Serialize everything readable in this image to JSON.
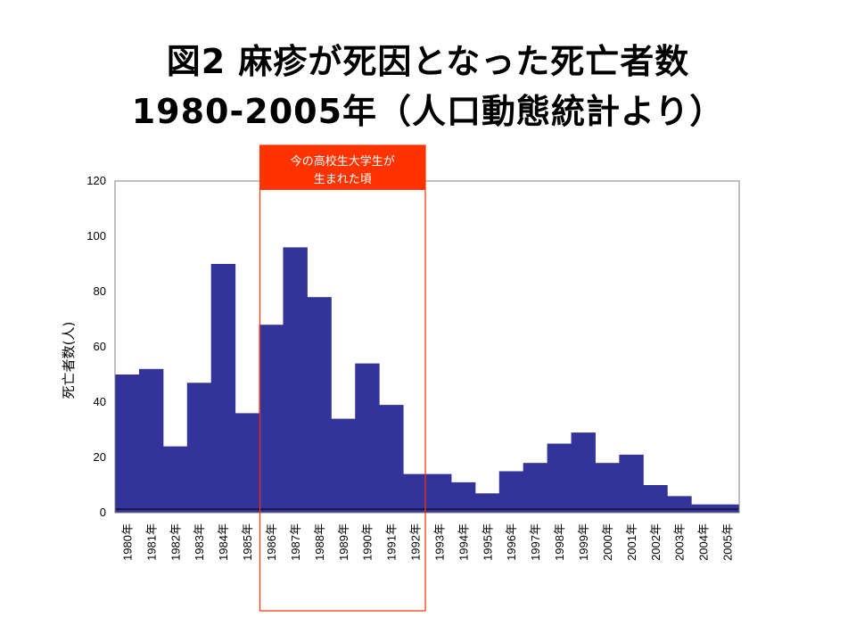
{
  "header": {
    "title_line1": "図2 麻疹が死因となった死亡者数",
    "title_line2": "1980-2005年（人口動態統計より）"
  },
  "colors": {
    "bar": "#333399",
    "callout": "#ff3300",
    "highlight_border": "#ff3300"
  },
  "callout": {
    "line1": "今の高校生大学生が",
    "line2": "生まれた頃"
  },
  "highlight": {
    "from_category": "1986年",
    "to_category": "1992年"
  },
  "chart_data": {
    "type": "bar",
    "title": "",
    "xlabel": "",
    "ylabel": "死亡者数(人)",
    "ylim": [
      0,
      120
    ],
    "yticks": [
      0,
      20,
      40,
      60,
      80,
      100,
      120
    ],
    "grid": false,
    "categories": [
      "1980年",
      "1981年",
      "1982年",
      "1983年",
      "1984年",
      "1985年",
      "1986年",
      "1987年",
      "1988年",
      "1989年",
      "1990年",
      "1991年",
      "1992年",
      "1993年",
      "1994年",
      "1995年",
      "1996年",
      "1997年",
      "1998年",
      "1999年",
      "2000年",
      "2001年",
      "2002年",
      "2003年",
      "2004年",
      "2005年"
    ],
    "values": [
      50,
      52,
      24,
      47,
      90,
      36,
      68,
      96,
      78,
      34,
      54,
      39,
      14,
      14,
      11,
      7,
      15,
      18,
      25,
      29,
      18,
      21,
      10,
      6,
      3,
      3
    ]
  }
}
